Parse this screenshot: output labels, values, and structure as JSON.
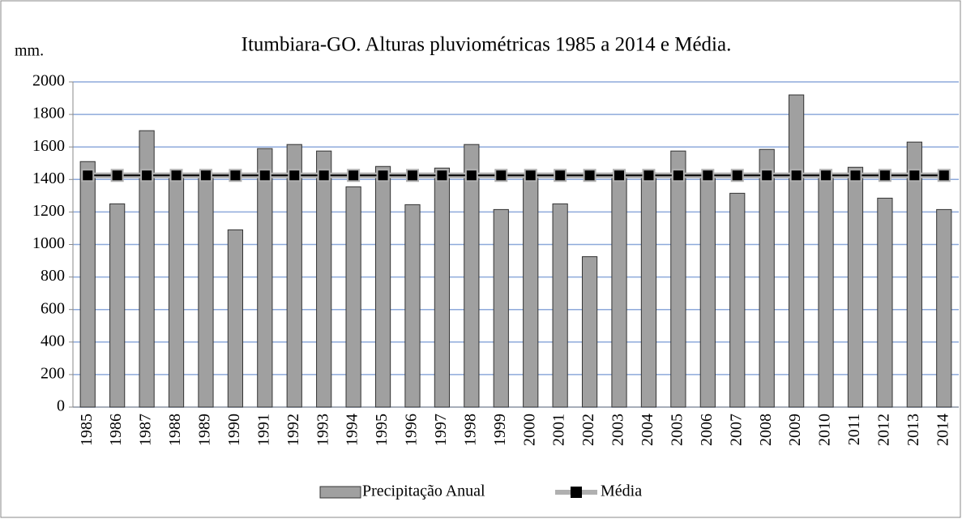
{
  "chart_data": {
    "type": "bar_line",
    "title": "Itumbiara-GO. Alturas pluviométricas 1985 a 2014 e Média.",
    "y_label": "mm.",
    "categories": [
      "1985",
      "1986",
      "1987",
      "1988",
      "1989",
      "1990",
      "1991",
      "1992",
      "1993",
      "1994",
      "1995",
      "1996",
      "1997",
      "1998",
      "1999",
      "2000",
      "2001",
      "2002",
      "2003",
      "2004",
      "2005",
      "2006",
      "2007",
      "2008",
      "2009",
      "2010",
      "2011",
      "2012",
      "2013",
      "2014"
    ],
    "series": [
      {
        "name": "Precipitação Anual",
        "kind": "bar",
        "color": "#a0a0a0",
        "values": [
          1510,
          1250,
          1700,
          1420,
          1430,
          1090,
          1590,
          1615,
          1575,
          1355,
          1480,
          1245,
          1470,
          1615,
          1215,
          1430,
          1250,
          925,
          1440,
          1440,
          1575,
          1420,
          1315,
          1585,
          1920,
          1430,
          1475,
          1285,
          1630,
          1215
        ]
      },
      {
        "name": "Média",
        "kind": "line",
        "color": "#000000",
        "values": [
          1425,
          1425,
          1425,
          1425,
          1425,
          1425,
          1425,
          1425,
          1425,
          1425,
          1425,
          1425,
          1425,
          1425,
          1425,
          1425,
          1425,
          1425,
          1425,
          1425,
          1425,
          1425,
          1425,
          1425,
          1425,
          1425,
          1425,
          1425,
          1425,
          1425
        ]
      }
    ],
    "ylim": [
      0,
      2000
    ],
    "yticks": [
      0,
      200,
      400,
      600,
      800,
      1000,
      1200,
      1400,
      1600,
      1800,
      2000
    ],
    "grid": true,
    "legend": "bottom"
  }
}
